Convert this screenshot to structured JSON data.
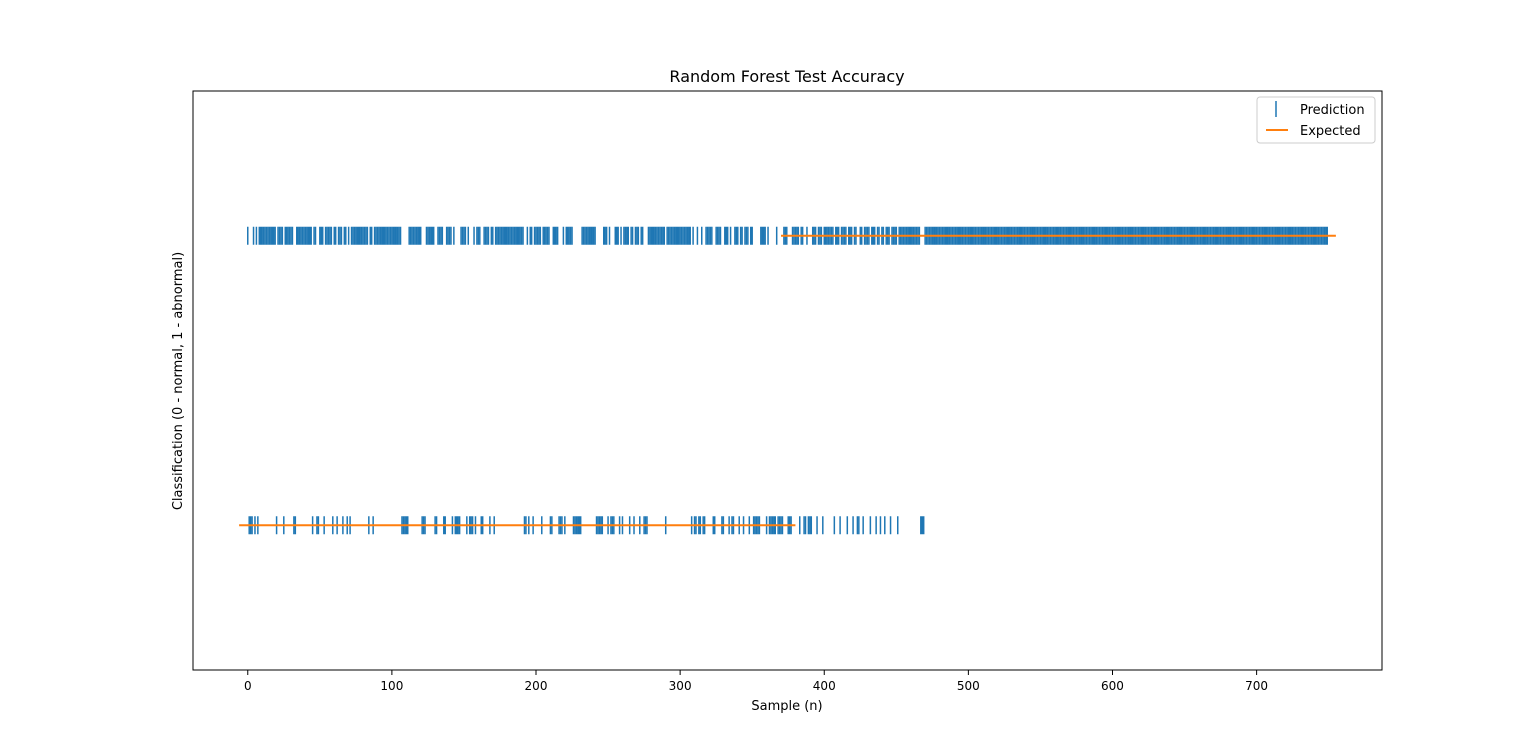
{
  "chart_data": {
    "type": "scatter",
    "title": "Random Forest Test Accuracy",
    "xlabel": "Sample (n)",
    "ylabel": "Classification (0 - normal, 1 - abnormal)",
    "xlim": [
      -38,
      787
    ],
    "ylim": [
      -0.5,
      1.5
    ],
    "x_ticks": [
      0,
      100,
      200,
      300,
      400,
      500,
      600,
      700
    ],
    "y_ticks": [],
    "grid": false,
    "legend": {
      "placement": "top-right",
      "entries": [
        "Prediction",
        "Expected"
      ]
    },
    "colors": {
      "prediction": "#1f77b4",
      "expected": "#ff7f0e"
    },
    "series": [
      {
        "name": "Prediction",
        "marker": "|",
        "points_at_1": [
          0,
          4,
          6,
          8,
          9,
          10,
          11,
          12,
          13,
          14,
          15,
          16,
          17,
          18,
          19,
          21,
          22,
          23,
          24,
          26,
          27,
          28,
          29,
          30,
          31,
          34,
          35,
          36,
          37,
          38,
          39,
          40,
          41,
          42,
          43,
          44,
          46,
          47,
          50,
          51,
          52,
          54,
          55,
          56,
          57,
          58,
          60,
          61,
          63,
          64,
          65,
          67,
          68,
          70,
          72,
          73,
          74,
          75,
          76,
          77,
          78,
          79,
          80,
          81,
          82,
          83,
          85,
          86,
          88,
          89,
          90,
          91,
          92,
          93,
          94,
          95,
          96,
          97,
          98,
          99,
          100,
          101,
          102,
          103,
          104,
          105,
          106,
          112,
          113,
          114,
          115,
          116,
          117,
          118,
          119,
          120,
          124,
          125,
          126,
          127,
          128,
          129,
          132,
          133,
          134,
          135,
          138,
          139,
          140,
          141,
          143,
          148,
          149,
          150,
          151,
          153,
          157,
          159,
          160,
          161,
          164,
          165,
          166,
          167,
          169,
          170,
          172,
          173,
          174,
          175,
          176,
          177,
          178,
          179,
          180,
          181,
          182,
          183,
          184,
          185,
          186,
          187,
          188,
          189,
          190,
          191,
          194,
          196,
          197,
          199,
          200,
          201,
          202,
          203,
          205,
          206,
          207,
          208,
          209,
          212,
          213,
          214,
          215,
          219,
          221,
          222,
          223,
          224,
          225,
          232,
          233,
          234,
          235,
          236,
          237,
          238,
          239,
          240,
          241,
          247,
          248,
          249,
          251,
          255,
          256,
          257,
          259,
          261,
          262,
          263,
          264,
          266,
          267,
          269,
          270,
          271,
          273,
          274,
          278,
          279,
          280,
          281,
          282,
          283,
          284,
          285,
          286,
          287,
          288,
          289,
          291,
          292,
          293,
          294,
          295,
          296,
          297,
          298,
          299,
          300,
          301,
          302,
          303,
          304,
          305,
          306,
          307,
          309,
          312,
          315,
          318,
          319,
          320,
          321,
          322,
          325,
          326,
          327,
          328,
          331,
          332,
          333,
          335,
          338,
          339,
          340,
          342,
          343,
          345,
          346,
          347,
          349,
          350,
          356,
          357,
          358,
          359,
          361,
          367,
          372,
          373,
          374,
          378,
          379,
          380,
          381,
          382,
          384,
          385,
          388,
          392,
          393,
          394,
          396,
          397,
          398,
          400,
          401,
          402,
          403,
          404,
          405,
          406,
          408,
          409,
          410,
          412,
          413,
          414,
          415,
          417,
          418,
          419,
          421,
          422,
          425,
          426,
          428,
          429,
          430,
          431,
          433,
          434,
          435,
          437,
          438,
          440,
          441,
          443,
          444,
          445,
          447,
          448,
          449,
          450,
          452,
          453,
          454,
          455,
          456,
          457,
          458,
          459,
          460,
          461,
          462,
          463,
          464,
          465,
          466,
          470,
          471,
          472,
          473,
          474,
          475,
          476,
          477,
          478,
          479,
          480,
          481,
          482,
          483,
          484,
          485,
          486,
          487,
          488,
          489,
          490,
          491,
          492,
          493,
          494,
          495,
          496,
          497,
          498,
          499,
          500,
          501,
          502,
          503,
          504,
          505,
          506,
          507,
          508,
          509,
          510,
          511,
          512,
          513,
          514,
          515,
          516,
          517,
          518,
          519,
          520,
          521,
          522,
          523,
          524,
          525,
          526,
          527,
          528,
          529,
          530,
          531,
          532,
          533,
          534,
          535,
          536,
          537,
          538,
          539,
          540,
          541,
          542,
          543,
          544,
          545,
          546,
          547,
          548,
          549,
          550,
          551,
          552,
          553,
          554,
          555,
          556,
          557,
          558,
          559,
          560,
          561,
          562,
          563,
          564,
          565,
          566,
          567,
          568,
          569,
          570,
          571,
          572,
          573,
          574,
          575,
          576,
          577,
          578,
          579,
          580,
          581,
          582,
          583,
          584,
          585,
          586,
          587,
          588,
          589,
          590,
          591,
          592,
          593,
          594,
          595,
          596,
          597,
          598,
          599,
          600,
          601,
          602,
          603,
          604,
          605,
          606,
          607,
          608,
          609,
          610,
          611,
          612,
          613,
          614,
          615,
          616,
          617,
          618,
          619,
          620,
          621,
          622,
          623,
          624,
          625,
          626,
          627,
          628,
          629,
          630,
          631,
          632,
          633,
          634,
          635,
          636,
          637,
          638,
          639,
          640,
          641,
          642,
          643,
          644,
          645,
          646,
          647,
          648,
          649,
          650,
          651,
          652,
          653,
          654,
          655,
          656,
          657,
          658,
          659,
          660,
          661,
          662,
          663,
          664,
          665,
          666,
          667,
          668,
          669,
          670,
          671,
          672,
          673,
          674,
          675,
          676,
          677,
          678,
          679,
          680,
          681,
          682,
          683,
          684,
          685,
          686,
          687,
          688,
          689,
          690,
          691,
          692,
          693,
          694,
          695,
          696,
          697,
          698,
          699,
          700,
          701,
          702,
          703,
          704,
          705,
          706,
          707,
          708,
          709,
          710,
          711,
          712,
          713,
          714,
          715,
          716,
          717,
          718,
          719,
          720,
          721,
          722,
          723,
          724,
          725,
          726,
          727,
          728,
          729,
          730,
          731,
          732,
          733,
          734,
          735,
          736,
          737,
          738,
          739,
          740,
          741,
          742,
          743,
          744,
          745,
          746,
          747,
          748,
          749
        ],
        "points_at_0_note": "all remaining samples 0-749 are predicted 0"
      },
      {
        "name": "Expected",
        "segments": [
          {
            "x": [
              -6,
              380
            ],
            "y": 0
          },
          {
            "x": [
              370,
              755
            ],
            "y": 1
          }
        ]
      }
    ]
  }
}
